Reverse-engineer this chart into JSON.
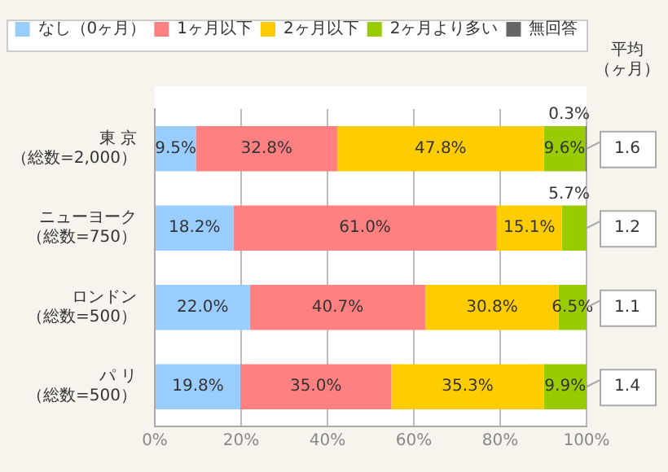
{
  "chart_data": {
    "type": "bar",
    "orientation": "horizontal",
    "stacked": true,
    "categories": [
      "東 京（総数=2,000）",
      "ニューヨーク（総数=750）",
      "ロンドン（総数=500）",
      "パ リ（総数=500）"
    ],
    "series": [
      {
        "name": "なし（0ヶ月）",
        "color": "#99ccff",
        "values": [
          9.5,
          18.2,
          22.0,
          19.8
        ],
        "value_labels": [
          "9.5%",
          "18.2%",
          "22.0%",
          "19.8%"
        ]
      },
      {
        "name": "1ヶ月以下",
        "color": "#ff8080",
        "values": [
          32.8,
          61.0,
          40.7,
          35.0
        ],
        "value_labels": [
          "32.8%",
          "61.0%",
          "40.7%",
          "35.0%"
        ]
      },
      {
        "name": "2ヶ月以下",
        "color": "#ffcc00",
        "values": [
          47.8,
          15.1,
          30.8,
          35.3
        ],
        "value_labels": [
          "47.8%",
          "15.1%",
          "30.8%",
          "35.3%"
        ]
      },
      {
        "name": "2ヶ月より多い",
        "color": "#99cc00",
        "values": [
          9.6,
          5.7,
          6.5,
          9.9
        ],
        "value_labels": [
          "9.6%",
          "5.7%",
          "6.5%",
          "9.9%"
        ]
      },
      {
        "name": "無回答",
        "color": "#666666",
        "values": [
          0.3,
          0,
          0,
          0
        ],
        "value_labels": [
          "0.3%",
          null,
          null,
          null
        ]
      }
    ],
    "xlim": [
      0,
      100
    ],
    "xticks": [
      {
        "value": 0,
        "label": "0%"
      },
      {
        "value": 20,
        "label": "20%"
      },
      {
        "value": 40,
        "label": "40%"
      },
      {
        "value": 60,
        "label": "60%"
      },
      {
        "value": 80,
        "label": "80%"
      },
      {
        "value": 100,
        "label": "100%"
      }
    ],
    "grid": "x",
    "legend": "top",
    "annotations": [
      "平均（ヶ月）",
      "1.6",
      "1.2",
      "1.1",
      "1.4"
    ]
  }
}
